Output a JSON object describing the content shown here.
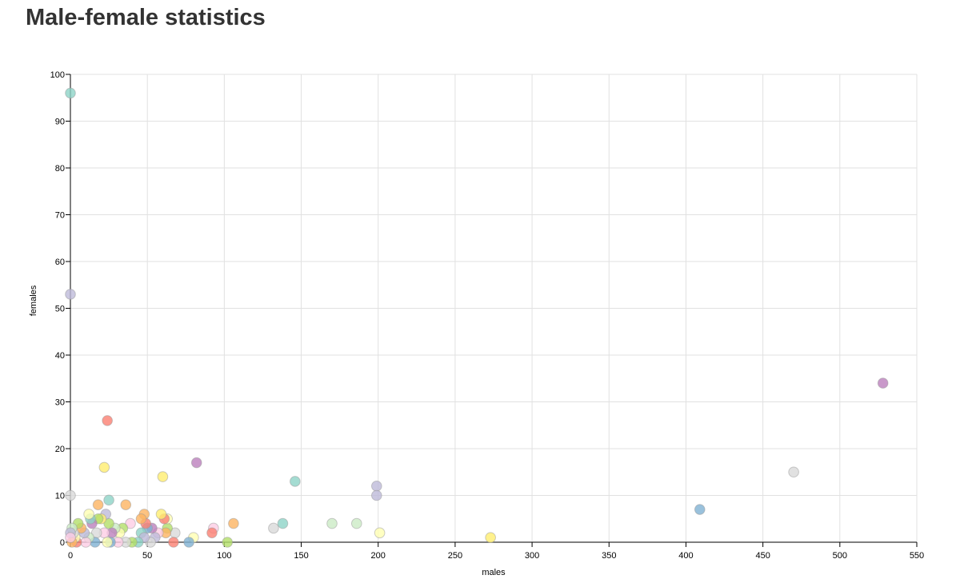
{
  "page": {
    "title": "Male-female statistics"
  },
  "chart_data": {
    "type": "scatter",
    "title": "Male-female statistics",
    "xlabel": "males",
    "ylabel": "females",
    "xlim": [
      0,
      550
    ],
    "ylim": [
      0,
      100
    ],
    "x_ticks": [
      0,
      50,
      100,
      150,
      200,
      250,
      300,
      350,
      400,
      450,
      500,
      550
    ],
    "y_ticks": [
      0,
      10,
      20,
      30,
      40,
      50,
      60,
      70,
      80,
      90,
      100
    ],
    "grid": true,
    "palette": [
      "#8dd3c7",
      "#ffffb3",
      "#bebada",
      "#fb8072",
      "#80b1d3",
      "#fdb462",
      "#b3de69",
      "#fccde5",
      "#d9d9d9",
      "#bc80bd",
      "#ccebc5",
      "#ffed6f"
    ],
    "points": [
      {
        "x": 0,
        "y": 96,
        "color": "#8dd3c7"
      },
      {
        "x": 0,
        "y": 53,
        "color": "#bebada"
      },
      {
        "x": 0,
        "y": 10,
        "color": "#d9d9d9"
      },
      {
        "x": 24,
        "y": 26,
        "color": "#fb8072"
      },
      {
        "x": 22,
        "y": 16,
        "color": "#ffed6f"
      },
      {
        "x": 60,
        "y": 14,
        "color": "#ffed6f"
      },
      {
        "x": 82,
        "y": 17,
        "color": "#bc80bd"
      },
      {
        "x": 146,
        "y": 13,
        "color": "#8dd3c7"
      },
      {
        "x": 199,
        "y": 12,
        "color": "#bebada"
      },
      {
        "x": 199,
        "y": 10,
        "color": "#bebada"
      },
      {
        "x": 409,
        "y": 7,
        "color": "#80b1d3"
      },
      {
        "x": 470,
        "y": 15,
        "color": "#d9d9d9"
      },
      {
        "x": 528,
        "y": 34,
        "color": "#bc80bd"
      },
      {
        "x": 273,
        "y": 1,
        "color": "#ffed6f"
      },
      {
        "x": 201,
        "y": 2,
        "color": "#ffffb3"
      },
      {
        "x": 186,
        "y": 4,
        "color": "#ccebc5"
      },
      {
        "x": 170,
        "y": 4,
        "color": "#ccebc5"
      },
      {
        "x": 138,
        "y": 4,
        "color": "#8dd3c7"
      },
      {
        "x": 132,
        "y": 3,
        "color": "#d9d9d9"
      },
      {
        "x": 106,
        "y": 4,
        "color": "#fdb462"
      },
      {
        "x": 102,
        "y": 0,
        "color": "#b3de69"
      },
      {
        "x": 93,
        "y": 3,
        "color": "#fccde5"
      },
      {
        "x": 92,
        "y": 2,
        "color": "#fb8072"
      },
      {
        "x": 80,
        "y": 1,
        "color": "#ffffb3"
      },
      {
        "x": 77,
        "y": 0,
        "color": "#80b1d3"
      },
      {
        "x": 68,
        "y": 2,
        "color": "#d9d9d9"
      },
      {
        "x": 67,
        "y": 0,
        "color": "#fb8072"
      },
      {
        "x": 63,
        "y": 3,
        "color": "#b3de69"
      },
      {
        "x": 62,
        "y": 2,
        "color": "#fdb462"
      },
      {
        "x": 63,
        "y": 5,
        "color": "#ffffb3"
      },
      {
        "x": 61,
        "y": 5,
        "color": "#fb8072"
      },
      {
        "x": 59,
        "y": 6,
        "color": "#ffed6f"
      },
      {
        "x": 57,
        "y": 2,
        "color": "#fccde5"
      },
      {
        "x": 55,
        "y": 1,
        "color": "#bebada"
      },
      {
        "x": 53,
        "y": 3,
        "color": "#bc80bd"
      },
      {
        "x": 52,
        "y": 0,
        "color": "#d9d9d9"
      },
      {
        "x": 50,
        "y": 3,
        "color": "#80b1d3"
      },
      {
        "x": 49,
        "y": 4,
        "color": "#fb8072"
      },
      {
        "x": 48,
        "y": 6,
        "color": "#fdb462"
      },
      {
        "x": 46,
        "y": 5,
        "color": "#fdb462"
      },
      {
        "x": 46,
        "y": 2,
        "color": "#8dd3c7"
      },
      {
        "x": 48,
        "y": 1,
        "color": "#bebada"
      },
      {
        "x": 44,
        "y": 0,
        "color": "#8dd3c7"
      },
      {
        "x": 40,
        "y": 0,
        "color": "#b3de69"
      },
      {
        "x": 39,
        "y": 4,
        "color": "#fccde5"
      },
      {
        "x": 36,
        "y": 0,
        "color": "#d9d9d9"
      },
      {
        "x": 36,
        "y": 8,
        "color": "#fdb462"
      },
      {
        "x": 34,
        "y": 3,
        "color": "#b3de69"
      },
      {
        "x": 32,
        "y": 2,
        "color": "#ffffb3"
      },
      {
        "x": 31,
        "y": 0,
        "color": "#fccde5"
      },
      {
        "x": 29,
        "y": 3,
        "color": "#ccebc5"
      },
      {
        "x": 27,
        "y": 2,
        "color": "#bc80bd"
      },
      {
        "x": 26,
        "y": 0,
        "color": "#80b1d3"
      },
      {
        "x": 25,
        "y": 9,
        "color": "#8dd3c7"
      },
      {
        "x": 25,
        "y": 4,
        "color": "#b3de69"
      },
      {
        "x": 23,
        "y": 6,
        "color": "#bebada"
      },
      {
        "x": 22,
        "y": 2,
        "color": "#fccde5"
      },
      {
        "x": 24,
        "y": 0,
        "color": "#ffffb3"
      },
      {
        "x": 20,
        "y": 5,
        "color": "#ffed6f"
      },
      {
        "x": 18,
        "y": 8,
        "color": "#fdb462"
      },
      {
        "x": 18,
        "y": 5,
        "color": "#b3de69"
      },
      {
        "x": 17,
        "y": 2,
        "color": "#d9d9d9"
      },
      {
        "x": 16,
        "y": 0,
        "color": "#80b1d3"
      },
      {
        "x": 14,
        "y": 4,
        "color": "#bc80bd"
      },
      {
        "x": 13,
        "y": 5,
        "color": "#8dd3c7"
      },
      {
        "x": 12,
        "y": 6,
        "color": "#ffffb3"
      },
      {
        "x": 12,
        "y": 1,
        "color": "#ccebc5"
      },
      {
        "x": 10,
        "y": 0,
        "color": "#fccde5"
      },
      {
        "x": 9,
        "y": 2,
        "color": "#bebada"
      },
      {
        "x": 7,
        "y": 3,
        "color": "#fdb462"
      },
      {
        "x": 5,
        "y": 4,
        "color": "#b3de69"
      },
      {
        "x": 4,
        "y": 0,
        "color": "#fb8072"
      },
      {
        "x": 3,
        "y": 1,
        "color": "#ffffb3"
      },
      {
        "x": 2,
        "y": 2,
        "color": "#d9d9d9"
      },
      {
        "x": 1,
        "y": 0,
        "color": "#fdb462"
      },
      {
        "x": 1,
        "y": 3,
        "color": "#ccebc5"
      },
      {
        "x": 0,
        "y": 2,
        "color": "#bebada"
      },
      {
        "x": 0,
        "y": 1,
        "color": "#fccde5"
      }
    ]
  }
}
